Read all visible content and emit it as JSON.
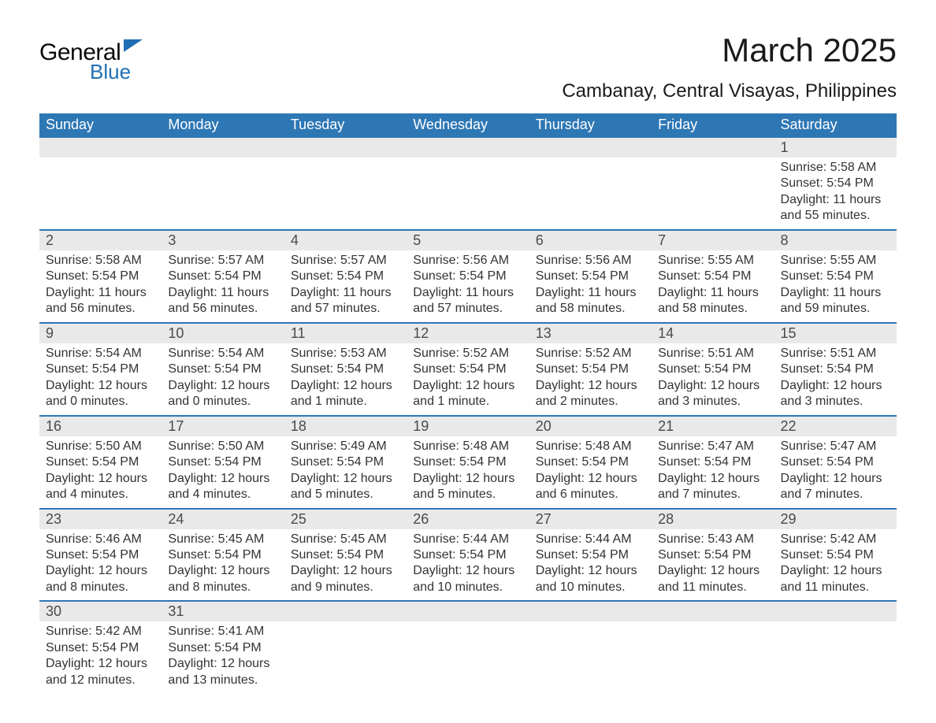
{
  "header": {
    "logo_general": "General",
    "logo_blue": "Blue",
    "month_title": "March 2025",
    "location": "Cambanay, Central Visayas, Philippines"
  },
  "style": {
    "header_bg": "#2e77b5",
    "header_text": "#ffffff",
    "daynum_bg": "#e9e9e9",
    "daynum_text": "#4a4a4a",
    "row_border": "#2e77b5",
    "body_text": "#333333",
    "logo_accent": "#1f6fb2",
    "page_bg": "#ffffff",
    "month_title_fontsize": 42,
    "location_fontsize": 24,
    "weekday_fontsize": 18,
    "cell_fontsize": 16
  },
  "calendar": {
    "type": "table",
    "weekdays": [
      "Sunday",
      "Monday",
      "Tuesday",
      "Wednesday",
      "Thursday",
      "Friday",
      "Saturday"
    ],
    "weeks": [
      [
        null,
        null,
        null,
        null,
        null,
        null,
        {
          "day": "1",
          "sunrise": "Sunrise: 5:58 AM",
          "sunset": "Sunset: 5:54 PM",
          "daylight1": "Daylight: 11 hours",
          "daylight2": "and 55 minutes."
        }
      ],
      [
        {
          "day": "2",
          "sunrise": "Sunrise: 5:58 AM",
          "sunset": "Sunset: 5:54 PM",
          "daylight1": "Daylight: 11 hours",
          "daylight2": "and 56 minutes."
        },
        {
          "day": "3",
          "sunrise": "Sunrise: 5:57 AM",
          "sunset": "Sunset: 5:54 PM",
          "daylight1": "Daylight: 11 hours",
          "daylight2": "and 56 minutes."
        },
        {
          "day": "4",
          "sunrise": "Sunrise: 5:57 AM",
          "sunset": "Sunset: 5:54 PM",
          "daylight1": "Daylight: 11 hours",
          "daylight2": "and 57 minutes."
        },
        {
          "day": "5",
          "sunrise": "Sunrise: 5:56 AM",
          "sunset": "Sunset: 5:54 PM",
          "daylight1": "Daylight: 11 hours",
          "daylight2": "and 57 minutes."
        },
        {
          "day": "6",
          "sunrise": "Sunrise: 5:56 AM",
          "sunset": "Sunset: 5:54 PM",
          "daylight1": "Daylight: 11 hours",
          "daylight2": "and 58 minutes."
        },
        {
          "day": "7",
          "sunrise": "Sunrise: 5:55 AM",
          "sunset": "Sunset: 5:54 PM",
          "daylight1": "Daylight: 11 hours",
          "daylight2": "and 58 minutes."
        },
        {
          "day": "8",
          "sunrise": "Sunrise: 5:55 AM",
          "sunset": "Sunset: 5:54 PM",
          "daylight1": "Daylight: 11 hours",
          "daylight2": "and 59 minutes."
        }
      ],
      [
        {
          "day": "9",
          "sunrise": "Sunrise: 5:54 AM",
          "sunset": "Sunset: 5:54 PM",
          "daylight1": "Daylight: 12 hours",
          "daylight2": "and 0 minutes."
        },
        {
          "day": "10",
          "sunrise": "Sunrise: 5:54 AM",
          "sunset": "Sunset: 5:54 PM",
          "daylight1": "Daylight: 12 hours",
          "daylight2": "and 0 minutes."
        },
        {
          "day": "11",
          "sunrise": "Sunrise: 5:53 AM",
          "sunset": "Sunset: 5:54 PM",
          "daylight1": "Daylight: 12 hours",
          "daylight2": "and 1 minute."
        },
        {
          "day": "12",
          "sunrise": "Sunrise: 5:52 AM",
          "sunset": "Sunset: 5:54 PM",
          "daylight1": "Daylight: 12 hours",
          "daylight2": "and 1 minute."
        },
        {
          "day": "13",
          "sunrise": "Sunrise: 5:52 AM",
          "sunset": "Sunset: 5:54 PM",
          "daylight1": "Daylight: 12 hours",
          "daylight2": "and 2 minutes."
        },
        {
          "day": "14",
          "sunrise": "Sunrise: 5:51 AM",
          "sunset": "Sunset: 5:54 PM",
          "daylight1": "Daylight: 12 hours",
          "daylight2": "and 3 minutes."
        },
        {
          "day": "15",
          "sunrise": "Sunrise: 5:51 AM",
          "sunset": "Sunset: 5:54 PM",
          "daylight1": "Daylight: 12 hours",
          "daylight2": "and 3 minutes."
        }
      ],
      [
        {
          "day": "16",
          "sunrise": "Sunrise: 5:50 AM",
          "sunset": "Sunset: 5:54 PM",
          "daylight1": "Daylight: 12 hours",
          "daylight2": "and 4 minutes."
        },
        {
          "day": "17",
          "sunrise": "Sunrise: 5:50 AM",
          "sunset": "Sunset: 5:54 PM",
          "daylight1": "Daylight: 12 hours",
          "daylight2": "and 4 minutes."
        },
        {
          "day": "18",
          "sunrise": "Sunrise: 5:49 AM",
          "sunset": "Sunset: 5:54 PM",
          "daylight1": "Daylight: 12 hours",
          "daylight2": "and 5 minutes."
        },
        {
          "day": "19",
          "sunrise": "Sunrise: 5:48 AM",
          "sunset": "Sunset: 5:54 PM",
          "daylight1": "Daylight: 12 hours",
          "daylight2": "and 5 minutes."
        },
        {
          "day": "20",
          "sunrise": "Sunrise: 5:48 AM",
          "sunset": "Sunset: 5:54 PM",
          "daylight1": "Daylight: 12 hours",
          "daylight2": "and 6 minutes."
        },
        {
          "day": "21",
          "sunrise": "Sunrise: 5:47 AM",
          "sunset": "Sunset: 5:54 PM",
          "daylight1": "Daylight: 12 hours",
          "daylight2": "and 7 minutes."
        },
        {
          "day": "22",
          "sunrise": "Sunrise: 5:47 AM",
          "sunset": "Sunset: 5:54 PM",
          "daylight1": "Daylight: 12 hours",
          "daylight2": "and 7 minutes."
        }
      ],
      [
        {
          "day": "23",
          "sunrise": "Sunrise: 5:46 AM",
          "sunset": "Sunset: 5:54 PM",
          "daylight1": "Daylight: 12 hours",
          "daylight2": "and 8 minutes."
        },
        {
          "day": "24",
          "sunrise": "Sunrise: 5:45 AM",
          "sunset": "Sunset: 5:54 PM",
          "daylight1": "Daylight: 12 hours",
          "daylight2": "and 8 minutes."
        },
        {
          "day": "25",
          "sunrise": "Sunrise: 5:45 AM",
          "sunset": "Sunset: 5:54 PM",
          "daylight1": "Daylight: 12 hours",
          "daylight2": "and 9 minutes."
        },
        {
          "day": "26",
          "sunrise": "Sunrise: 5:44 AM",
          "sunset": "Sunset: 5:54 PM",
          "daylight1": "Daylight: 12 hours",
          "daylight2": "and 10 minutes."
        },
        {
          "day": "27",
          "sunrise": "Sunrise: 5:44 AM",
          "sunset": "Sunset: 5:54 PM",
          "daylight1": "Daylight: 12 hours",
          "daylight2": "and 10 minutes."
        },
        {
          "day": "28",
          "sunrise": "Sunrise: 5:43 AM",
          "sunset": "Sunset: 5:54 PM",
          "daylight1": "Daylight: 12 hours",
          "daylight2": "and 11 minutes."
        },
        {
          "day": "29",
          "sunrise": "Sunrise: 5:42 AM",
          "sunset": "Sunset: 5:54 PM",
          "daylight1": "Daylight: 12 hours",
          "daylight2": "and 11 minutes."
        }
      ],
      [
        {
          "day": "30",
          "sunrise": "Sunrise: 5:42 AM",
          "sunset": "Sunset: 5:54 PM",
          "daylight1": "Daylight: 12 hours",
          "daylight2": "and 12 minutes."
        },
        {
          "day": "31",
          "sunrise": "Sunrise: 5:41 AM",
          "sunset": "Sunset: 5:54 PM",
          "daylight1": "Daylight: 12 hours",
          "daylight2": "and 13 minutes."
        },
        null,
        null,
        null,
        null,
        null
      ]
    ]
  }
}
